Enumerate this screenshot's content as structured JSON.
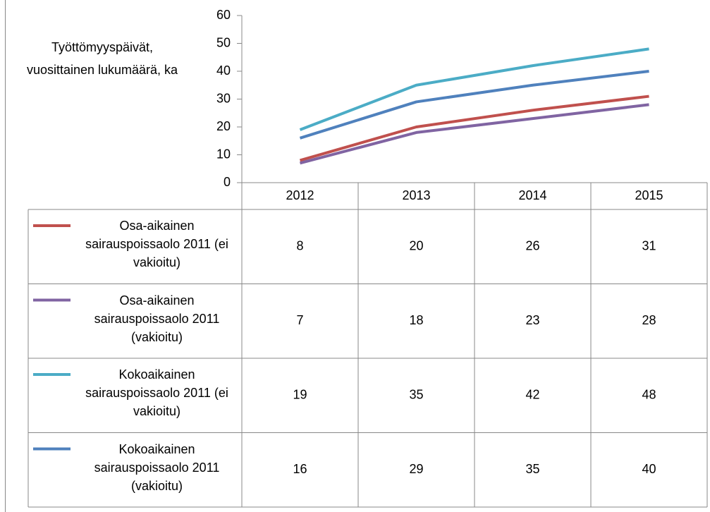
{
  "chart_data": {
    "type": "line",
    "y_axis_label_lines": [
      "Työttömyyspäivät,",
      "vuosittainen lukumäärä, ka"
    ],
    "categories": [
      "2012",
      "2013",
      "2014",
      "2015"
    ],
    "series": [
      {
        "name": "Osa-aikainen sairauspoissaolo 2011 (ei vakioitu)",
        "color": "#c0504d",
        "values": [
          8,
          20,
          26,
          31
        ]
      },
      {
        "name": "Osa-aikainen sairauspoissaolo 2011 (vakioitu)",
        "color": "#8064a2",
        "values": [
          7,
          18,
          23,
          28
        ]
      },
      {
        "name": "Kokoaikainen sairauspoissaolo 2011 (ei vakioitu)",
        "color": "#4bacc6",
        "values": [
          19,
          35,
          42,
          48
        ]
      },
      {
        "name": "Kokoaikainen sairauspoissaolo 2011 (vakioitu)",
        "color": "#4f81bd",
        "values": [
          16,
          29,
          35,
          40
        ]
      }
    ],
    "ylim": [
      0,
      60
    ],
    "yticks": [
      0,
      10,
      20,
      30,
      40,
      50,
      60
    ],
    "grid": false,
    "data_table": true
  }
}
